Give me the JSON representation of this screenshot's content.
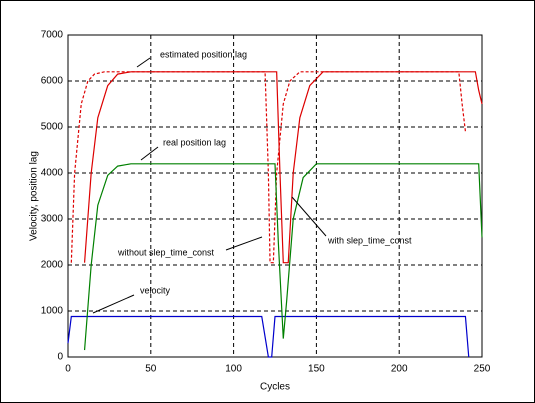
{
  "chart_data": {
    "type": "line",
    "xlabel": "Cycles",
    "ylabel": "Velocity, position lag",
    "xlim": [
      0,
      250
    ],
    "ylim": [
      0,
      7000
    ],
    "xticks": [
      0,
      50,
      100,
      150,
      200,
      250
    ],
    "yticks": [
      0,
      1000,
      2000,
      3000,
      4000,
      5000,
      6000,
      7000
    ],
    "grid": true,
    "annotations": [
      "estimated position lag",
      "real position lag",
      "without slep_time_const",
      "with slep_time_const",
      "velocity"
    ],
    "series": [
      {
        "color": "#0000cc",
        "dashed": false,
        "x": [
          0,
          2,
          117,
          121,
          123,
          125,
          240,
          242
        ],
        "values": [
          300,
          880,
          880,
          0,
          0,
          880,
          880,
          0
        ]
      },
      {
        "color": "#dd0000",
        "dashed": true,
        "x": [
          2,
          4,
          8,
          12,
          16,
          22,
          119,
          121,
          122,
          124,
          126,
          130,
          134,
          140,
          236,
          238,
          240
        ],
        "values": [
          2050,
          4000,
          5500,
          6000,
          6150,
          6200,
          6200,
          4000,
          2050,
          2050,
          4000,
          5500,
          6000,
          6200,
          6200,
          5500,
          4900
        ]
      },
      {
        "color": "#dd0000",
        "dashed": false,
        "x": [
          10,
          14,
          18,
          24,
          30,
          38,
          126,
          128,
          130,
          133,
          136,
          140,
          146,
          154,
          246,
          248,
          250
        ],
        "values": [
          2050,
          4000,
          5200,
          5900,
          6150,
          6200,
          6200,
          4000,
          2050,
          2050,
          4000,
          5200,
          5900,
          6200,
          6200,
          5800,
          5500
        ]
      },
      {
        "color": "#008000",
        "dashed": false,
        "x": [
          10,
          14,
          18,
          24,
          30,
          38,
          125,
          127,
          130,
          132,
          136,
          142,
          150,
          248,
          250
        ],
        "values": [
          150,
          2000,
          3300,
          3950,
          4150,
          4200,
          4200,
          2500,
          400,
          1200,
          3000,
          3900,
          4200,
          4200,
          2600
        ]
      }
    ]
  }
}
